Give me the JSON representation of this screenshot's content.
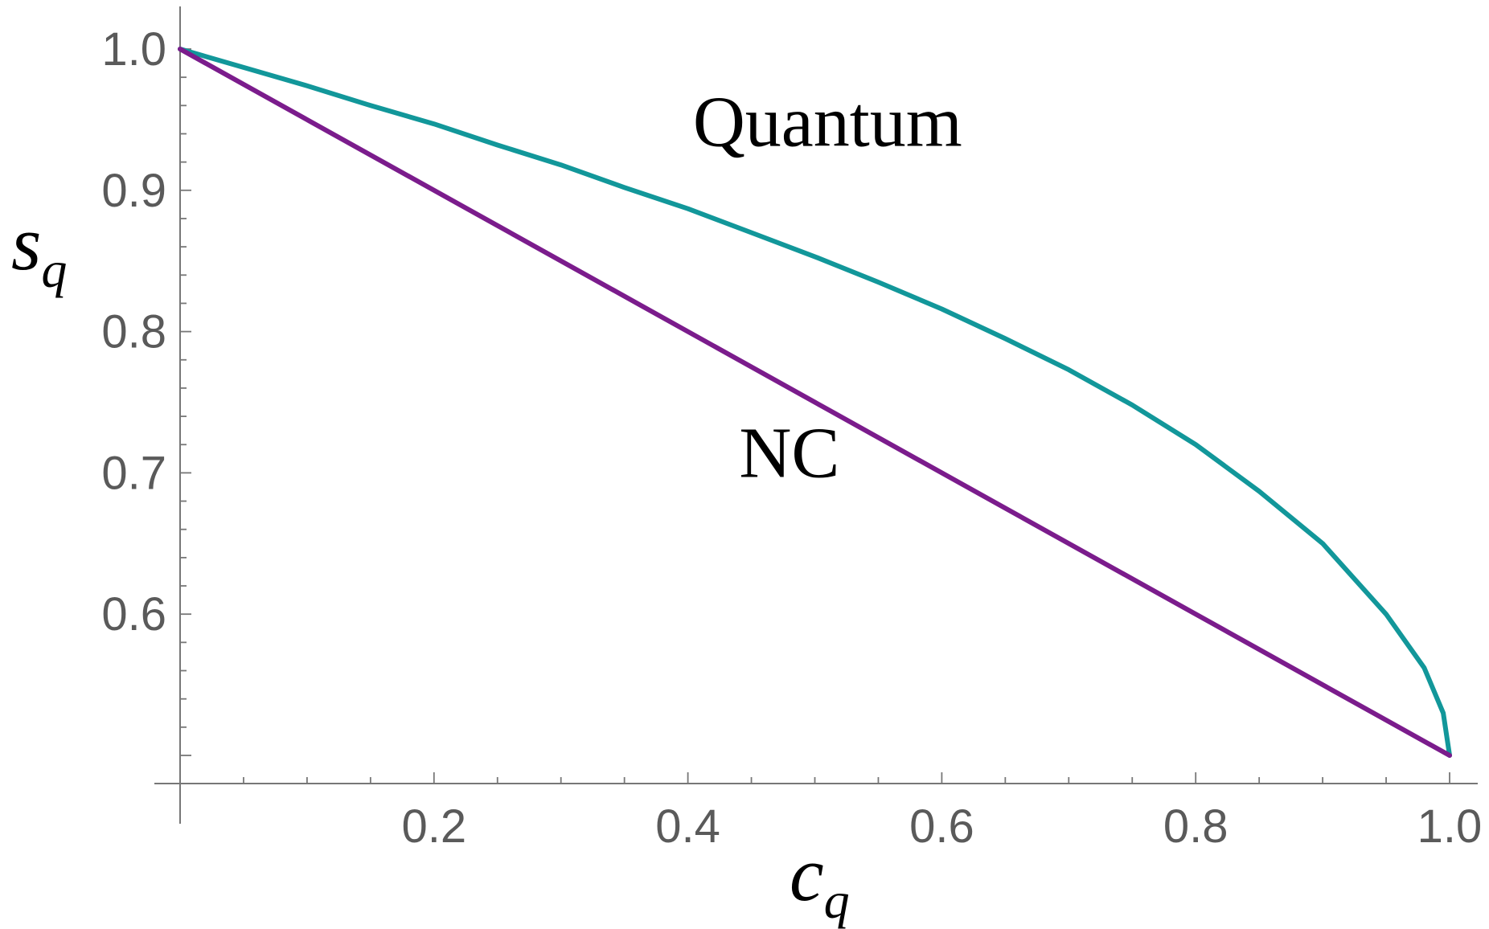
{
  "chart_data": {
    "type": "line",
    "xlabel": {
      "main": "c",
      "sub": "q"
    },
    "ylabel": {
      "main": "s",
      "sub": "q"
    },
    "xlim": [
      0,
      1
    ],
    "ylim": [
      0.5,
      1.0
    ],
    "x_ticks": [
      {
        "value": 0.2,
        "label": "0.2"
      },
      {
        "value": 0.4,
        "label": "0.4"
      },
      {
        "value": 0.6,
        "label": "0.6"
      },
      {
        "value": 0.8,
        "label": "0.8"
      },
      {
        "value": 1.0,
        "label": "1.0"
      }
    ],
    "x_minor_step": 0.05,
    "y_ticks": [
      {
        "value": 0.6,
        "label": "0.6"
      },
      {
        "value": 0.7,
        "label": "0.7"
      },
      {
        "value": 0.8,
        "label": "0.8"
      },
      {
        "value": 0.9,
        "label": "0.9"
      },
      {
        "value": 1.0,
        "label": "1.0"
      }
    ],
    "y_minor_step": 0.02,
    "grid": false,
    "series": [
      {
        "name": "Quantum",
        "color": "#12979a",
        "x": [
          0,
          0.05,
          0.1,
          0.15,
          0.2,
          0.25,
          0.3,
          0.35,
          0.4,
          0.45,
          0.5,
          0.55,
          0.6,
          0.65,
          0.7,
          0.75,
          0.8,
          0.85,
          0.9,
          0.95,
          0.98,
          0.995,
          1.0
        ],
        "y": [
          1.0,
          0.987,
          0.974,
          0.96,
          0.947,
          0.932,
          0.918,
          0.902,
          0.887,
          0.87,
          0.853,
          0.835,
          0.816,
          0.795,
          0.773,
          0.748,
          0.72,
          0.687,
          0.65,
          0.6,
          0.562,
          0.53,
          0.5
        ]
      },
      {
        "name": "NC",
        "color": "#7b1c8c",
        "x": [
          0,
          1
        ],
        "y": [
          1.0,
          0.5
        ]
      }
    ]
  }
}
